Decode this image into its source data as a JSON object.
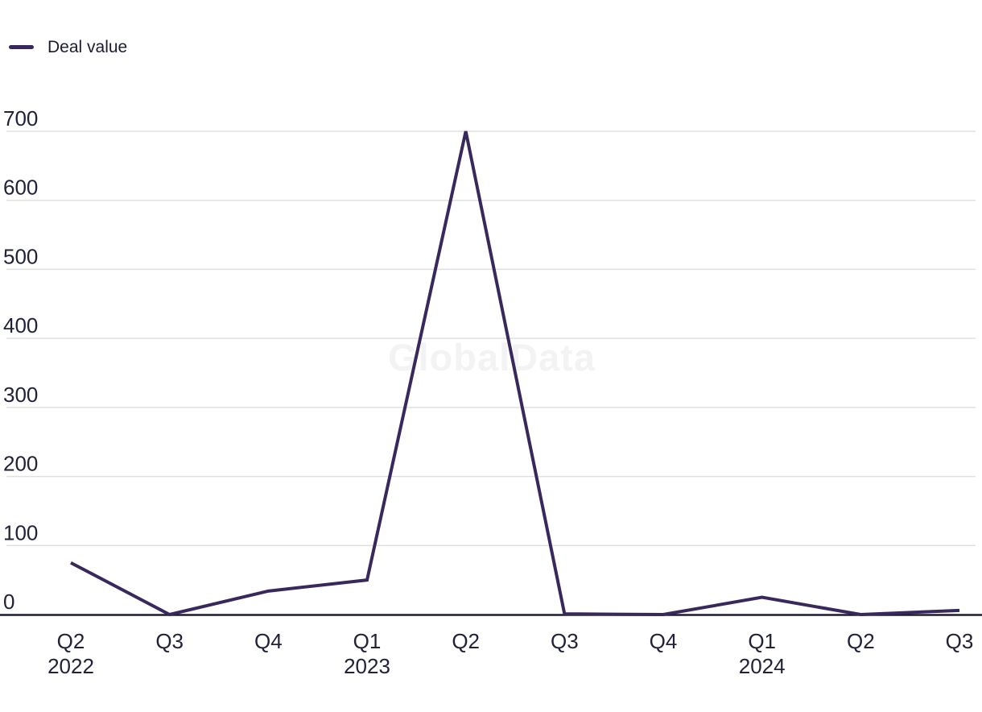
{
  "legend": {
    "label": "Deal value"
  },
  "chart_data": {
    "type": "line",
    "title": "",
    "xlabel": "",
    "ylabel": "",
    "categories": [
      "Q2 2022",
      "Q3 2022",
      "Q4 2022",
      "Q1 2023",
      "Q2 2023",
      "Q3 2023",
      "Q4 2023",
      "Q1 2024",
      "Q2 2024",
      "Q3 2024"
    ],
    "x_ticks": [
      {
        "quarter": "Q2",
        "year": "2022"
      },
      {
        "quarter": "Q3",
        "year": ""
      },
      {
        "quarter": "Q4",
        "year": ""
      },
      {
        "quarter": "Q1",
        "year": "2023"
      },
      {
        "quarter": "Q2",
        "year": ""
      },
      {
        "quarter": "Q3",
        "year": ""
      },
      {
        "quarter": "Q4",
        "year": ""
      },
      {
        "quarter": "Q1",
        "year": "2024"
      },
      {
        "quarter": "Q2",
        "year": ""
      },
      {
        "quarter": "Q3",
        "year": ""
      }
    ],
    "series": [
      {
        "name": "Deal value",
        "values": [
          75,
          0,
          34,
          50,
          700,
          1,
          0,
          25,
          0,
          6
        ]
      }
    ],
    "y_ticks": [
      0,
      100,
      200,
      300,
      400,
      500,
      600,
      700
    ],
    "ylim": [
      0,
      700
    ],
    "grid": "horizontal",
    "legend_position": "top-left",
    "watermark": "GlobalData",
    "colors": {
      "line": "#38285c",
      "axis": "#1b1b30",
      "gridline": "#e0e0e0",
      "tick_text": "#21213a",
      "watermark": "#f3f3f3"
    }
  }
}
